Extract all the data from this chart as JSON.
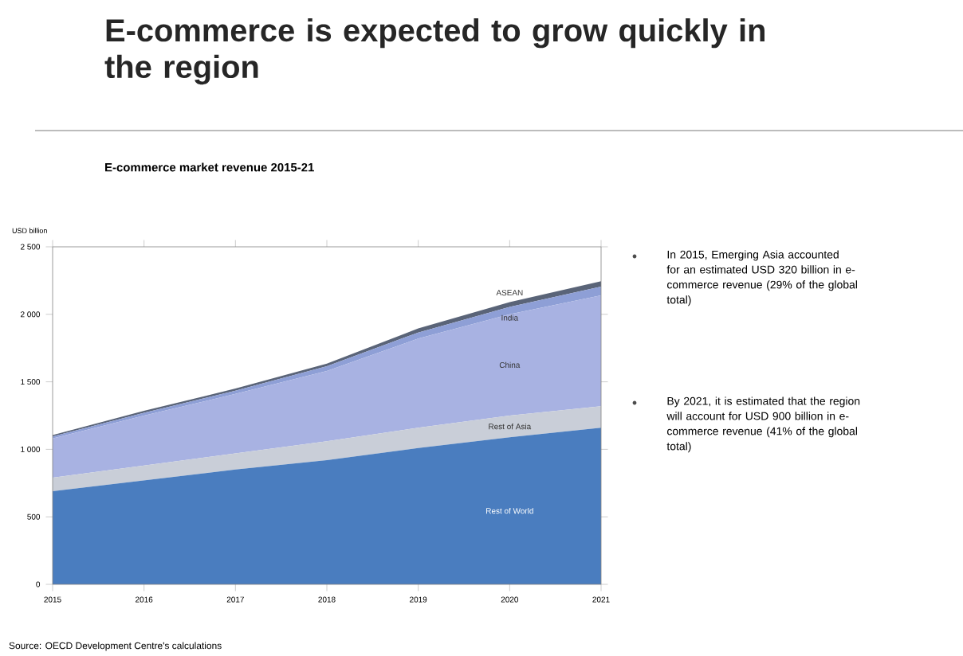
{
  "chart_data": {
    "type": "area",
    "title": "E-commerce is expected to grow quickly in the region",
    "subtitle": "E-commerce market revenue 2015-21",
    "ylabel": "USD billion",
    "categories": [
      "2015",
      "2016",
      "2017",
      "2018",
      "2019",
      "2020",
      "2021"
    ],
    "stacked": true,
    "legend": false,
    "grid": false,
    "ylim": [
      0,
      2500
    ],
    "yticks": [
      0,
      500,
      {
        "value": 1000,
        "label": "1 000"
      },
      {
        "value": 1500,
        "label": "1 500"
      },
      {
        "value": 2000,
        "label": "2 000"
      },
      {
        "value": 2500,
        "label": "2 500"
      }
    ],
    "series": [
      {
        "name": "Rest of World",
        "color": "#4a7dbf",
        "values": [
          690,
          770,
          850,
          920,
          1010,
          1090,
          1160
        ]
      },
      {
        "name": "Rest of Asia",
        "color": "#c9ced8",
        "values": [
          100,
          110,
          120,
          140,
          150,
          160,
          160
        ]
      },
      {
        "name": "China",
        "color": "#a8b2e2",
        "values": [
          290,
          370,
          440,
          520,
          660,
          750,
          820
        ]
      },
      {
        "name": "India",
        "color": "#8e9fd6",
        "values": [
          15,
          20,
          25,
          35,
          45,
          55,
          65
        ]
      },
      {
        "name": "ASEAN",
        "color": "#5a6478",
        "values": [
          10,
          15,
          15,
          20,
          30,
          35,
          40
        ]
      }
    ],
    "annotations": [
      "In 2015, Emerging Asia accounted for an estimated USD 320 billion in e-commerce revenue (29% of the global total)",
      "By 2021, it is estimated that the region will account for USD 900 billion in e-commerce revenue (41% of the global total)",
      "Source: OECD Development Centre's calculations"
    ]
  }
}
